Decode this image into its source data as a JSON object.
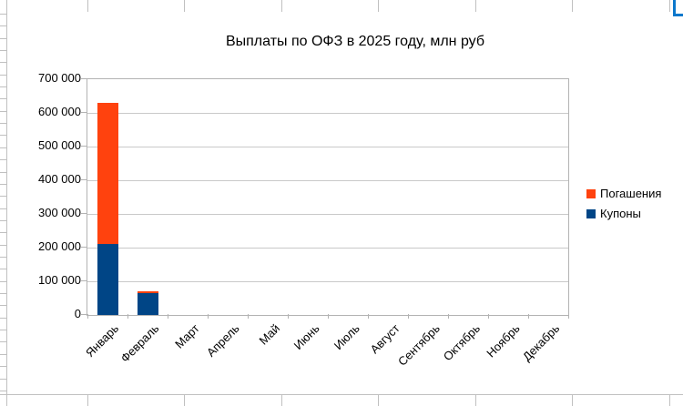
{
  "spreadsheet": {
    "gridline_color": "#c0c0c0",
    "selection_border_color": "#0c78cc"
  },
  "chart_data": {
    "type": "bar",
    "stacked": true,
    "title": "Выплаты по ОФЗ в 2025 году, млн руб",
    "categories": [
      "Январь",
      "Февраль",
      "Март",
      "Апрель",
      "Май",
      "Июнь",
      "Июль",
      "Август",
      "Сентябрь",
      "Октябрь",
      "Ноябрь",
      "Декабрь"
    ],
    "series": [
      {
        "name": "Погашения",
        "color": "#ff420e",
        "values": [
          420000,
          4000,
          0,
          0,
          0,
          0,
          0,
          0,
          0,
          0,
          0,
          0
        ]
      },
      {
        "name": "Купоны",
        "color": "#004586",
        "values": [
          210000,
          66000,
          0,
          0,
          0,
          0,
          0,
          0,
          0,
          0,
          0,
          0
        ]
      }
    ],
    "xlabel": "",
    "ylabel": "",
    "ylim": [
      0,
      700000
    ],
    "ytick_step": 100000,
    "ytick_labels": [
      "0",
      "100 000",
      "200 000",
      "300 000",
      "400 000",
      "500 000",
      "600 000",
      "700 000"
    ],
    "grid": true,
    "grid_color": "#c9c9c9",
    "axis_color": "#b3b3b3",
    "legend_position": "right"
  }
}
